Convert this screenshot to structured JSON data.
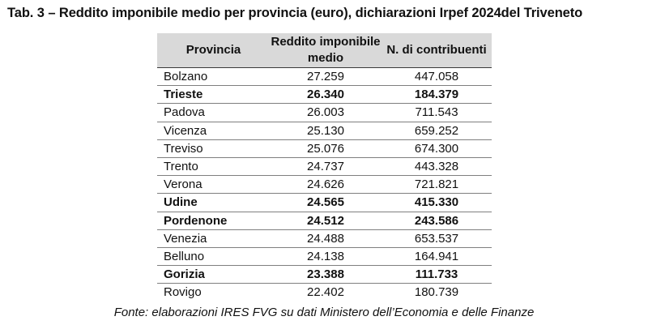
{
  "title": "Tab. 3 – Reddito imponibile medio per provincia (euro), dichiarazioni Irpef 2024del Triveneto",
  "table": {
    "headers": {
      "provincia": "Provincia",
      "reddito": "Reddito imponibile medio",
      "contribuenti": "N. di contribuenti"
    },
    "rows": [
      {
        "provincia": "Bolzano",
        "reddito": "27.259",
        "contribuenti": "447.058",
        "bold": false
      },
      {
        "provincia": "Trieste",
        "reddito": "26.340",
        "contribuenti": "184.379",
        "bold": true
      },
      {
        "provincia": "Padova",
        "reddito": "26.003",
        "contribuenti": "711.543",
        "bold": false
      },
      {
        "provincia": "Vicenza",
        "reddito": "25.130",
        "contribuenti": "659.252",
        "bold": false
      },
      {
        "provincia": "Treviso",
        "reddito": "25.076",
        "contribuenti": "674.300",
        "bold": false
      },
      {
        "provincia": "Trento",
        "reddito": "24.737",
        "contribuenti": "443.328",
        "bold": false
      },
      {
        "provincia": "Verona",
        "reddito": "24.626",
        "contribuenti": "721.821",
        "bold": false
      },
      {
        "provincia": "Udine",
        "reddito": "24.565",
        "contribuenti": "415.330",
        "bold": true
      },
      {
        "provincia": "Pordenone",
        "reddito": "24.512",
        "contribuenti": "243.586",
        "bold": true
      },
      {
        "provincia": "Venezia",
        "reddito": "24.488",
        "contribuenti": "653.537",
        "bold": false
      },
      {
        "provincia": "Belluno",
        "reddito": "24.138",
        "contribuenti": "164.941",
        "bold": false
      },
      {
        "provincia": "Gorizia",
        "reddito": "23.388",
        "contribuenti": "111.733",
        "bold": true
      },
      {
        "provincia": "Rovigo",
        "reddito": "22.402",
        "contribuenti": "180.739",
        "bold": false
      }
    ]
  },
  "source": "Fonte: elaborazioni IRES FVG su dati Ministero dell’Economia e delle Finanze"
}
